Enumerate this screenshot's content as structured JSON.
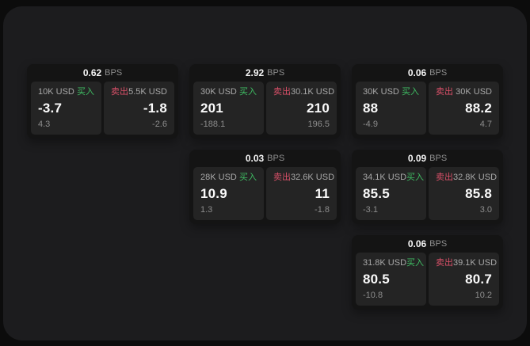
{
  "labels": {
    "bps_unit": "BPS",
    "buy": "买入",
    "sell": "卖出"
  },
  "colors": {
    "page_background": "#0c0c0c",
    "window_background": "#1c1c1e",
    "card_background": "#141414",
    "pane_background": "#242424",
    "buy_green": "#3fbd63",
    "sell_red": "#d95068"
  },
  "cards": [
    {
      "bps": "0.62",
      "buy": {
        "amount": "10K USD",
        "value": "-3.7",
        "delta": "4.3"
      },
      "sell": {
        "amount": "5.5K USD",
        "value": "-1.8",
        "delta": "-2.6"
      }
    },
    {
      "bps": "2.92",
      "buy": {
        "amount": "30K USD",
        "value": "201",
        "delta": "-188.1"
      },
      "sell": {
        "amount": "30.1K USD",
        "value": "210",
        "delta": "196.5"
      }
    },
    {
      "bps": "0.06",
      "buy": {
        "amount": "30K USD",
        "value": "88",
        "delta": "-4.9"
      },
      "sell": {
        "amount": "30K USD",
        "value": "88.2",
        "delta": "4.7"
      }
    },
    {
      "bps": "0.03",
      "buy": {
        "amount": "28K USD",
        "value": "10.9",
        "delta": "1.3"
      },
      "sell": {
        "amount": "32.6K USD",
        "value": "11",
        "delta": "-1.8"
      }
    },
    {
      "bps": "0.09",
      "buy": {
        "amount": "34.1K USD",
        "value": "85.5",
        "delta": "-3.1"
      },
      "sell": {
        "amount": "32.8K USD",
        "value": "85.8",
        "delta": "3.0"
      }
    },
    {
      "bps": "0.06",
      "buy": {
        "amount": "31.8K USD",
        "value": "80.5",
        "delta": "-10.8"
      },
      "sell": {
        "amount": "39.1K USD",
        "value": "80.7",
        "delta": "10.2"
      }
    }
  ]
}
